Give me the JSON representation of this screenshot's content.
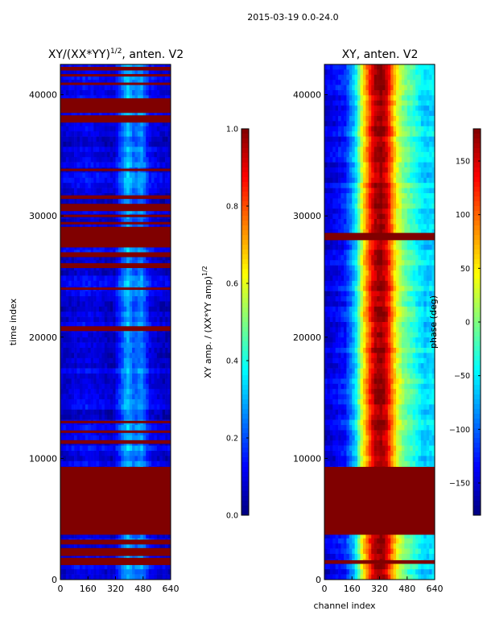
{
  "chart_data": {
    "type": "heatmap",
    "suptitle": "2015-03-19 0.0-24.0",
    "xlabel": "channel index",
    "panels": [
      {
        "title_prefix": "XY/(XX*YY)",
        "title_sup": "1/2",
        "title_suffix": ", anten. V2",
        "ylabel": "time index",
        "xlim": [
          0,
          640
        ],
        "ylim": [
          0,
          42500
        ],
        "xticks": [
          0,
          160,
          320,
          480,
          640
        ],
        "yticks": [
          0,
          10000,
          20000,
          30000,
          40000
        ],
        "colorbar": {
          "label_prefix": "XY amp. / (XX*YY amp)",
          "label_sup": "1/2",
          "range": [
            0.0,
            1.0
          ],
          "ticks": [
            "0.0",
            "0.2",
            "0.4",
            "0.6",
            "0.8",
            "1.0"
          ],
          "tick_values": [
            0.0,
            0.2,
            0.4,
            0.6,
            0.8,
            1.0
          ]
        },
        "flagged_bands": [
          [
            1200,
            1800
          ],
          [
            1950,
            2600
          ],
          [
            2900,
            3300
          ],
          [
            3700,
            9300
          ],
          [
            11200,
            11500
          ],
          [
            12100,
            12300
          ],
          [
            12900,
            13100
          ],
          [
            20500,
            20900
          ],
          [
            23900,
            24100
          ],
          [
            25700,
            26100
          ],
          [
            26600,
            27000
          ],
          [
            27400,
            29100
          ],
          [
            29300,
            29500
          ],
          [
            29900,
            30100
          ],
          [
            30400,
            31000
          ],
          [
            31400,
            31700
          ],
          [
            33700,
            33900
          ],
          [
            37700,
            38300
          ],
          [
            38500,
            39700
          ],
          [
            40800,
            41000
          ],
          [
            41500,
            41700
          ],
          [
            42000,
            42300
          ]
        ],
        "band_values": [
          [
            0,
            0.08
          ],
          [
            150,
            0.12
          ],
          [
            310,
            0.08
          ],
          [
            390,
            0.32
          ],
          [
            430,
            0.22
          ],
          [
            470,
            0.28
          ],
          [
            520,
            0.12
          ],
          [
            600,
            0.08
          ],
          [
            640,
            0.08
          ]
        ]
      },
      {
        "title_prefix": "XY, anten. V2",
        "ylim": [
          0,
          42500
        ],
        "xlim": [
          0,
          640
        ],
        "xticks": [
          0,
          160,
          320,
          480,
          640
        ],
        "yticks": [
          0,
          10000,
          20000,
          30000,
          40000
        ],
        "colorbar": {
          "label_prefix": "phase (deg)",
          "range": [
            -180,
            180
          ],
          "ticks": [
            "−150",
            "−100",
            "−50",
            "0",
            "50",
            "100",
            "150"
          ],
          "tick_values": [
            -150,
            -100,
            -50,
            0,
            50,
            100,
            150
          ]
        },
        "flagged_bands": [
          [
            3700,
            9300
          ],
          [
            1300,
            1600
          ],
          [
            28000,
            28600
          ]
        ],
        "band_values": [
          [
            0,
            -150
          ],
          [
            60,
            -140
          ],
          [
            120,
            -125
          ],
          [
            180,
            -60
          ],
          [
            220,
            40
          ],
          [
            260,
            110
          ],
          [
            290,
            160
          ],
          [
            330,
            175
          ],
          [
            360,
            150
          ],
          [
            390,
            95
          ],
          [
            420,
            40
          ],
          [
            460,
            0
          ],
          [
            520,
            -30
          ],
          [
            580,
            -60
          ],
          [
            640,
            -55
          ]
        ]
      }
    ]
  },
  "colors": {
    "flag": "#800000",
    "colormap": "jet"
  }
}
